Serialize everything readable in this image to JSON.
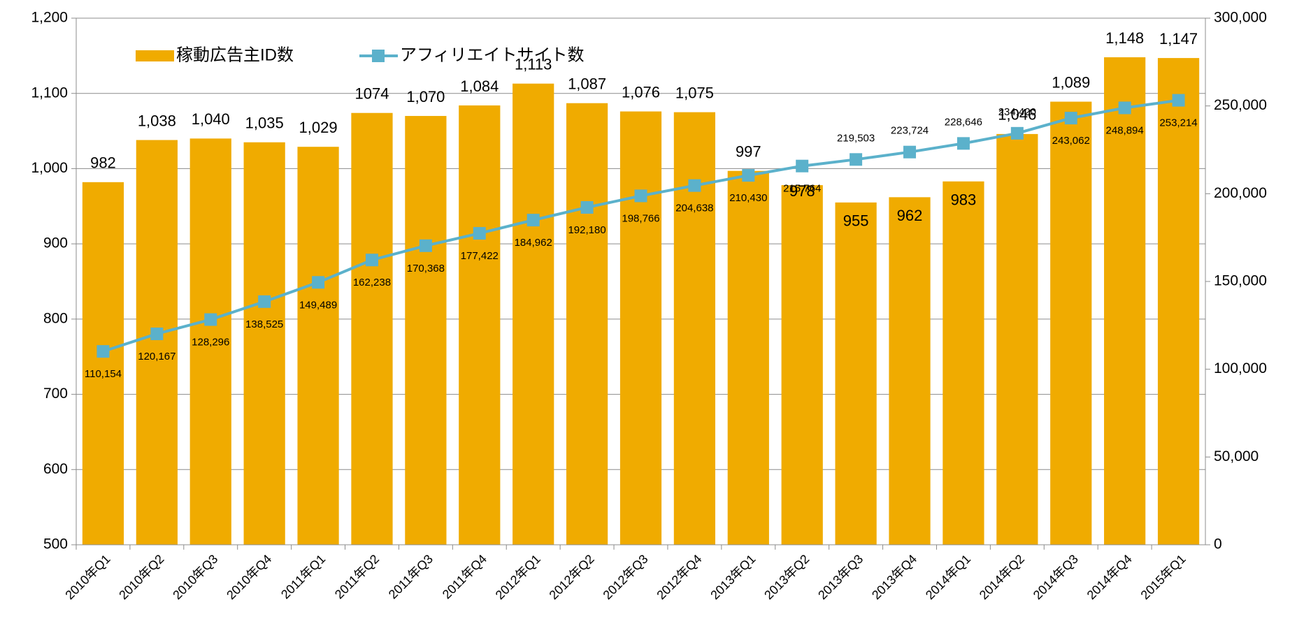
{
  "chart_data": {
    "type": "bar_line",
    "categories": [
      "2010年Q1",
      "2010年Q2",
      "2010年Q3",
      "2010年Q4",
      "2011年Q1",
      "2011年Q2",
      "2011年Q3",
      "2011年Q4",
      "2012年Q1",
      "2012年Q2",
      "2012年Q3",
      "2012年Q4",
      "2013年Q1",
      "2013年Q2",
      "2013年Q3",
      "2013年Q4",
      "2014年Q1",
      "2014年Q2",
      "2014年Q3",
      "2014年Q4",
      "2015年Q1"
    ],
    "series": [
      {
        "name": "稼動広告主ID数",
        "type": "bar",
        "color": "#f0ab00",
        "values": [
          982,
          1038,
          1040,
          1035,
          1029,
          1074,
          1070,
          1084,
          1113,
          1087,
          1076,
          1075,
          997,
          978,
          955,
          962,
          983,
          1046,
          1089,
          1148,
          1147
        ],
        "value_labels": [
          "982",
          "1,038",
          "1,040",
          "1,035",
          "1,029",
          "1074",
          "1,070",
          "1,084",
          "1,113",
          "1,087",
          "1,076",
          "1,075",
          "997",
          "978",
          "955",
          "962",
          "983",
          "1,046",
          "1,089",
          "1,148",
          "1,147"
        ]
      },
      {
        "name": "アフィリエイトサイト数",
        "type": "line",
        "axis": "y2",
        "color": "#5bb1cb",
        "values": [
          110154,
          120167,
          128296,
          138525,
          149489,
          162238,
          170368,
          177422,
          184962,
          192180,
          198766,
          204638,
          210430,
          215764,
          219503,
          223724,
          228646,
          234420,
          243062,
          248894,
          253214
        ],
        "value_labels": [
          "110,154",
          "120,167",
          "128,296",
          "138,525",
          "149,489",
          "162,238",
          "170,368",
          "177,422",
          "184,962",
          "192,180",
          "198,766",
          "204,638",
          "210,430",
          "215,764",
          "219,503",
          "223,724",
          "228,646",
          "234,420",
          "243,062",
          "248,894",
          "253,214"
        ]
      }
    ],
    "ylim": [
      500,
      1200
    ],
    "yticks": [
      500,
      600,
      700,
      800,
      900,
      {
        "value": 1000,
        "label": "1,000"
      },
      {
        "value": 1100,
        "label": "1,100"
      },
      {
        "value": 1200,
        "label": "1,200"
      }
    ],
    "y2lim": [
      0,
      300000
    ],
    "y2ticks": [
      0,
      {
        "value": 50000,
        "label": "50,000"
      },
      {
        "value": 100000,
        "label": "100,000"
      },
      {
        "value": 150000,
        "label": "150,000"
      },
      {
        "value": 200000,
        "label": "200,000"
      },
      {
        "value": 250000,
        "label": "250,000"
      },
      {
        "value": 300000,
        "label": "300,000"
      }
    ],
    "grid": true,
    "legend": "top-left"
  }
}
